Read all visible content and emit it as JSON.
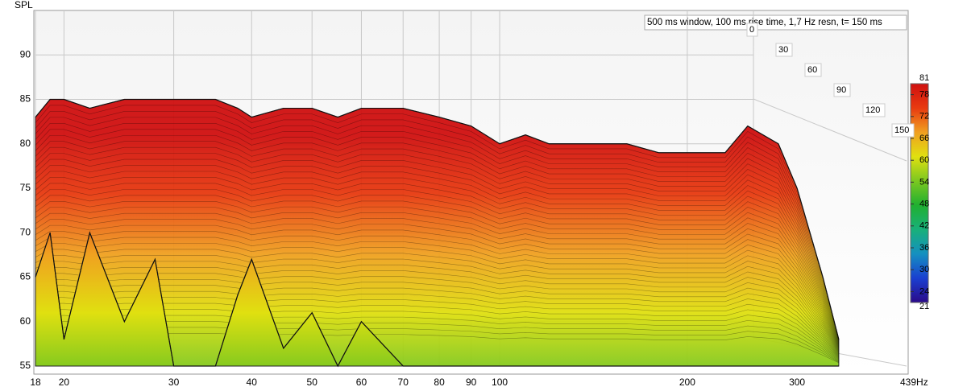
{
  "chart_data": {
    "type": "waterfall",
    "ylabel": "SPL",
    "annotation": "500 ms window, 100 ms rise time,  1,7 Hz resn, t= 150 ms",
    "x": [
      18,
      19,
      20,
      22,
      25,
      28,
      30,
      33,
      35,
      38,
      40,
      45,
      50,
      55,
      60,
      70,
      80,
      90,
      100,
      110,
      120,
      140,
      160,
      180,
      200,
      230,
      250,
      280,
      300,
      330,
      350
    ],
    "series": [
      {
        "values": [
          83,
          85,
          85,
          84,
          85,
          85,
          85,
          85,
          85,
          84,
          83,
          84,
          84,
          83,
          84,
          84,
          83,
          82,
          80,
          81,
          80,
          80,
          80,
          79,
          79,
          79,
          82,
          80,
          75,
          65,
          58
        ]
      },
      {
        "values": [
          65,
          70,
          58,
          70,
          60,
          67,
          55,
          55,
          55,
          63,
          67,
          57,
          61,
          55,
          60,
          55,
          55,
          55,
          55,
          55,
          55,
          55,
          55,
          55,
          55,
          55,
          55,
          55,
          55,
          55,
          55
        ]
      }
    ],
    "xscale": "log",
    "xlim": [
      18,
      439
    ],
    "xticks": [
      18,
      20,
      30,
      40,
      50,
      60,
      70,
      80,
      90,
      100,
      200,
      300,
      {
        "value": 439,
        "label": "439Hz"
      }
    ],
    "ylim": [
      55,
      95
    ],
    "yticks": [
      55,
      60,
      65,
      70,
      75,
      80,
      85,
      90
    ],
    "zlim": [
      0,
      150
    ],
    "zticks": [
      0,
      30,
      60,
      90,
      120,
      150
    ],
    "clim": [
      21,
      81
    ],
    "cticks": [
      24,
      30,
      36,
      42,
      48,
      54,
      60,
      66,
      72,
      78
    ],
    "colors": [
      "#2a0a8a",
      "#1a3fd0",
      "#1590c0",
      "#18b07a",
      "#20b030",
      "#7cc820",
      "#e0e010",
      "#f0a020",
      "#e83a10",
      "#d01010"
    ],
    "grid": true
  }
}
